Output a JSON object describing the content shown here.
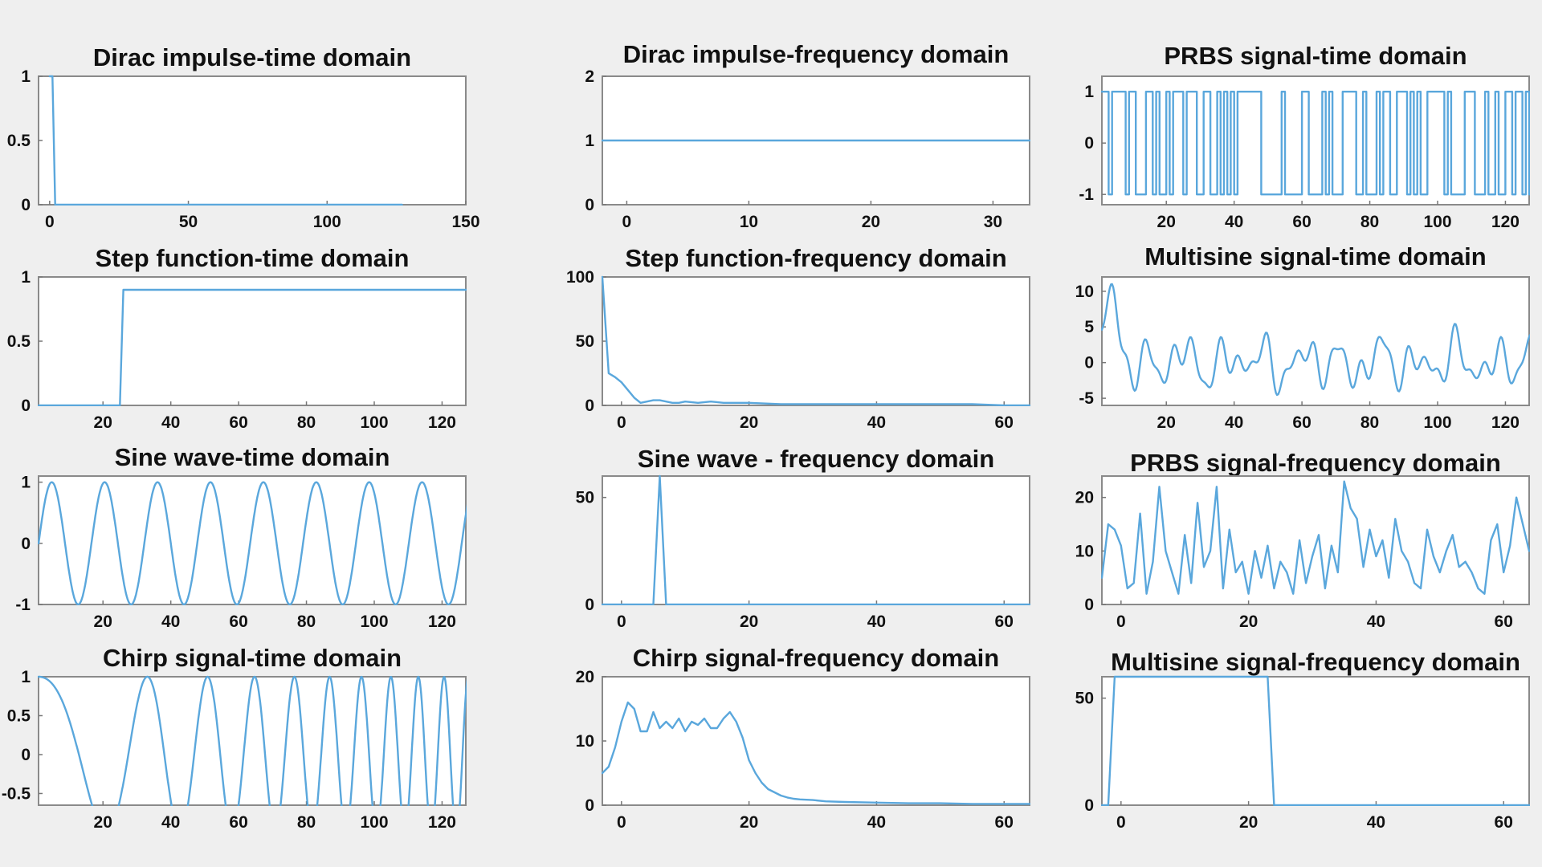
{
  "line_color": "#5aa7dc",
  "chart_data": [
    {
      "id": "p0",
      "type": "line",
      "title": "Dirac impulse-time domain",
      "xlim": [
        -4,
        150
      ],
      "ylim": [
        0,
        1
      ],
      "xticks": [
        0,
        50,
        100,
        150
      ],
      "yticks": [
        0,
        0.5,
        1
      ],
      "x": [
        0,
        1,
        2,
        127
      ],
      "y": [
        1,
        1,
        0,
        0
      ]
    },
    {
      "id": "p1",
      "type": "line",
      "title": "Dirac impulse-frequency domain",
      "xlim": [
        -2,
        33
      ],
      "ylim": [
        0,
        2
      ],
      "xticks": [
        0,
        10,
        20,
        30
      ],
      "yticks": [
        0,
        1,
        2
      ],
      "x": [
        -2,
        33
      ],
      "y": [
        1,
        1
      ]
    },
    {
      "id": "p2",
      "type": "line",
      "title": "PRBS signal-time domain",
      "xlim": [
        1,
        127
      ],
      "ylim": [
        -1.2,
        1.3
      ],
      "xticks": [
        20,
        40,
        60,
        80,
        100,
        120
      ],
      "yticks": [
        -1,
        0,
        1
      ],
      "signal": "prbs",
      "samples": 127,
      "levels": [
        -1,
        1
      ]
    },
    {
      "id": "p3",
      "type": "line",
      "title": "Step function-time domain",
      "xlim": [
        1,
        127
      ],
      "ylim": [
        0,
        1
      ],
      "xticks": [
        20,
        40,
        60,
        80,
        100,
        120
      ],
      "yticks": [
        0,
        0.5,
        1
      ],
      "x": [
        1,
        25,
        26,
        127
      ],
      "y": [
        0,
        0,
        0.9,
        0.9
      ]
    },
    {
      "id": "p4",
      "type": "line",
      "title": "Step function-frequency domain",
      "xlim": [
        -3,
        64
      ],
      "ylim": [
        0,
        100
      ],
      "xticks": [
        0,
        20,
        40,
        60
      ],
      "yticks": [
        0,
        50,
        100
      ],
      "x": [
        -3,
        -2,
        -1,
        0,
        1,
        2,
        3,
        4,
        5,
        6,
        7,
        8,
        9,
        10,
        12,
        14,
        16,
        18,
        20,
        25,
        30,
        35,
        40,
        45,
        50,
        55,
        60,
        64
      ],
      "y": [
        100,
        25,
        22,
        18,
        12,
        6,
        2,
        3,
        4,
        4,
        3,
        2,
        2,
        3,
        2,
        3,
        2,
        2,
        2,
        1,
        1,
        1,
        1,
        1,
        1,
        1,
        0,
        0
      ]
    },
    {
      "id": "p5",
      "type": "line",
      "title": "Multisine signal-time domain",
      "xlim": [
        1,
        127
      ],
      "ylim": [
        -6,
        12
      ],
      "xticks": [
        20,
        40,
        60,
        80,
        100,
        120
      ],
      "yticks": [
        -5,
        0,
        5,
        10
      ],
      "signal": "multisine-time",
      "samples": 127
    },
    {
      "id": "p6",
      "type": "line",
      "title": "Sine wave-time domain",
      "xlim": [
        1,
        127
      ],
      "ylim": [
        -1,
        1.1
      ],
      "xticks": [
        20,
        40,
        60,
        80,
        100,
        120
      ],
      "yticks": [
        -1,
        0,
        1
      ],
      "signal": "sine",
      "period": 15.6,
      "samples": 127
    },
    {
      "id": "p7",
      "type": "line",
      "title": "Sine wave - frequency domain",
      "xlim": [
        -3,
        64
      ],
      "ylim": [
        0,
        60
      ],
      "xticks": [
        0,
        20,
        40,
        60
      ],
      "yticks": [
        0,
        50
      ],
      "x": [
        -3,
        4,
        5,
        6,
        7,
        64
      ],
      "y": [
        0,
        0,
        0,
        60,
        0,
        0
      ]
    },
    {
      "id": "p8",
      "type": "line",
      "title": "PRBS signal-frequency domain",
      "xlim": [
        -3,
        64
      ],
      "ylim": [
        0,
        24
      ],
      "xticks": [
        0,
        20,
        40,
        60
      ],
      "yticks": [
        0,
        10,
        20
      ],
      "x": [
        -3,
        -2,
        -1,
        0,
        1,
        2,
        3,
        4,
        5,
        6,
        7,
        8,
        9,
        10,
        11,
        12,
        13,
        14,
        15,
        16,
        17,
        18,
        19,
        20,
        21,
        22,
        23,
        24,
        25,
        26,
        27,
        28,
        29,
        30,
        31,
        32,
        33,
        34,
        35,
        36,
        37,
        38,
        39,
        40,
        41,
        42,
        43,
        44,
        45,
        46,
        47,
        48,
        49,
        50,
        51,
        52,
        53,
        54,
        55,
        56,
        57,
        58,
        59,
        60,
        61,
        62,
        63,
        64
      ],
      "y": [
        5,
        15,
        14,
        11,
        3,
        4,
        17,
        2,
        8,
        22,
        10,
        6,
        2,
        13,
        4,
        19,
        7,
        10,
        22,
        3,
        14,
        6,
        8,
        2,
        10,
        5,
        11,
        3,
        8,
        6,
        2,
        12,
        4,
        9,
        13,
        3,
        11,
        6,
        23,
        18,
        16,
        7,
        14,
        9,
        12,
        5,
        16,
        10,
        8,
        4,
        3,
        14,
        9,
        6,
        10,
        13,
        7,
        8,
        6,
        3,
        2,
        12,
        15,
        6,
        11,
        20,
        15,
        10
      ]
    },
    {
      "id": "p9",
      "type": "line",
      "title": "Chirp signal-time domain",
      "xlim": [
        1,
        127
      ],
      "ylim": [
        -0.65,
        1
      ],
      "xticks": [
        20,
        40,
        60,
        80,
        100,
        120
      ],
      "yticks": [
        -0.5,
        0,
        0.5,
        1
      ],
      "signal": "chirp",
      "samples": 127
    },
    {
      "id": "p10",
      "type": "line",
      "title": "Chirp signal-frequency domain",
      "xlim": [
        -3,
        64
      ],
      "ylim": [
        0,
        20
      ],
      "xticks": [
        0,
        20,
        40,
        60
      ],
      "yticks": [
        0,
        10,
        20
      ],
      "x": [
        -3,
        -2,
        -1,
        0,
        1,
        2,
        3,
        4,
        5,
        6,
        7,
        8,
        9,
        10,
        11,
        12,
        13,
        14,
        15,
        16,
        17,
        18,
        19,
        20,
        21,
        22,
        23,
        24,
        25,
        26,
        27,
        28,
        30,
        32,
        35,
        40,
        45,
        50,
        55,
        60,
        64
      ],
      "y": [
        5,
        6,
        9,
        13,
        16,
        15,
        11.5,
        11.5,
        14.5,
        12,
        13,
        12,
        13.5,
        11.5,
        13,
        12.5,
        13.5,
        12,
        12,
        13.5,
        14.5,
        13,
        10.5,
        7,
        5,
        3.5,
        2.5,
        2,
        1.5,
        1.2,
        1,
        0.9,
        0.8,
        0.6,
        0.5,
        0.4,
        0.3,
        0.3,
        0.2,
        0.2,
        0.2
      ]
    },
    {
      "id": "p11",
      "type": "line",
      "title": "Multisine signal-frequency domain",
      "xlim": [
        -3,
        64
      ],
      "ylim": [
        0,
        60
      ],
      "xticks": [
        0,
        20,
        40,
        60
      ],
      "yticks": [
        0,
        50
      ],
      "x": [
        -3,
        -2,
        -1,
        0,
        22,
        23,
        24,
        25,
        64
      ],
      "y": [
        0,
        0,
        60,
        60,
        60,
        60,
        0,
        0,
        0
      ]
    }
  ]
}
